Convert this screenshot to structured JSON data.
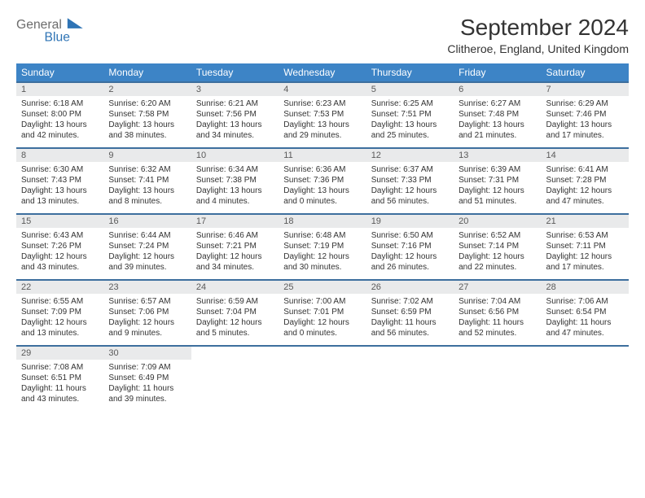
{
  "logo": {
    "text_main": "General",
    "text_sub": "Blue",
    "main_color": "#6c6c6c",
    "sub_color": "#2f74b5",
    "tri_color": "#2f74b5"
  },
  "header": {
    "month_title": "September 2024",
    "location": "Clitheroe, England, United Kingdom"
  },
  "columns": [
    "Sunday",
    "Monday",
    "Tuesday",
    "Wednesday",
    "Thursday",
    "Friday",
    "Saturday"
  ],
  "colors": {
    "header_bg": "#3d84c6",
    "header_text": "#ffffff",
    "row_rule": "#3d6f9e",
    "daynum_bg": "#e9eaeb",
    "daynum_text": "#5a5a5a",
    "body_text": "#333333",
    "page_bg": "#ffffff"
  },
  "fonts": {
    "title_pt": 28,
    "location_pt": 14,
    "colhead_pt": 12,
    "daynum_pt": 11,
    "body_pt": 10
  },
  "weeks": [
    [
      {
        "n": "1",
        "sr": "6:18 AM",
        "ss": "8:00 PM",
        "dl": "13 hours and 42 minutes."
      },
      {
        "n": "2",
        "sr": "6:20 AM",
        "ss": "7:58 PM",
        "dl": "13 hours and 38 minutes."
      },
      {
        "n": "3",
        "sr": "6:21 AM",
        "ss": "7:56 PM",
        "dl": "13 hours and 34 minutes."
      },
      {
        "n": "4",
        "sr": "6:23 AM",
        "ss": "7:53 PM",
        "dl": "13 hours and 29 minutes."
      },
      {
        "n": "5",
        "sr": "6:25 AM",
        "ss": "7:51 PM",
        "dl": "13 hours and 25 minutes."
      },
      {
        "n": "6",
        "sr": "6:27 AM",
        "ss": "7:48 PM",
        "dl": "13 hours and 21 minutes."
      },
      {
        "n": "7",
        "sr": "6:29 AM",
        "ss": "7:46 PM",
        "dl": "13 hours and 17 minutes."
      }
    ],
    [
      {
        "n": "8",
        "sr": "6:30 AM",
        "ss": "7:43 PM",
        "dl": "13 hours and 13 minutes."
      },
      {
        "n": "9",
        "sr": "6:32 AM",
        "ss": "7:41 PM",
        "dl": "13 hours and 8 minutes."
      },
      {
        "n": "10",
        "sr": "6:34 AM",
        "ss": "7:38 PM",
        "dl": "13 hours and 4 minutes."
      },
      {
        "n": "11",
        "sr": "6:36 AM",
        "ss": "7:36 PM",
        "dl": "13 hours and 0 minutes."
      },
      {
        "n": "12",
        "sr": "6:37 AM",
        "ss": "7:33 PM",
        "dl": "12 hours and 56 minutes."
      },
      {
        "n": "13",
        "sr": "6:39 AM",
        "ss": "7:31 PM",
        "dl": "12 hours and 51 minutes."
      },
      {
        "n": "14",
        "sr": "6:41 AM",
        "ss": "7:28 PM",
        "dl": "12 hours and 47 minutes."
      }
    ],
    [
      {
        "n": "15",
        "sr": "6:43 AM",
        "ss": "7:26 PM",
        "dl": "12 hours and 43 minutes."
      },
      {
        "n": "16",
        "sr": "6:44 AM",
        "ss": "7:24 PM",
        "dl": "12 hours and 39 minutes."
      },
      {
        "n": "17",
        "sr": "6:46 AM",
        "ss": "7:21 PM",
        "dl": "12 hours and 34 minutes."
      },
      {
        "n": "18",
        "sr": "6:48 AM",
        "ss": "7:19 PM",
        "dl": "12 hours and 30 minutes."
      },
      {
        "n": "19",
        "sr": "6:50 AM",
        "ss": "7:16 PM",
        "dl": "12 hours and 26 minutes."
      },
      {
        "n": "20",
        "sr": "6:52 AM",
        "ss": "7:14 PM",
        "dl": "12 hours and 22 minutes."
      },
      {
        "n": "21",
        "sr": "6:53 AM",
        "ss": "7:11 PM",
        "dl": "12 hours and 17 minutes."
      }
    ],
    [
      {
        "n": "22",
        "sr": "6:55 AM",
        "ss": "7:09 PM",
        "dl": "12 hours and 13 minutes."
      },
      {
        "n": "23",
        "sr": "6:57 AM",
        "ss": "7:06 PM",
        "dl": "12 hours and 9 minutes."
      },
      {
        "n": "24",
        "sr": "6:59 AM",
        "ss": "7:04 PM",
        "dl": "12 hours and 5 minutes."
      },
      {
        "n": "25",
        "sr": "7:00 AM",
        "ss": "7:01 PM",
        "dl": "12 hours and 0 minutes."
      },
      {
        "n": "26",
        "sr": "7:02 AM",
        "ss": "6:59 PM",
        "dl": "11 hours and 56 minutes."
      },
      {
        "n": "27",
        "sr": "7:04 AM",
        "ss": "6:56 PM",
        "dl": "11 hours and 52 minutes."
      },
      {
        "n": "28",
        "sr": "7:06 AM",
        "ss": "6:54 PM",
        "dl": "11 hours and 47 minutes."
      }
    ],
    [
      {
        "n": "29",
        "sr": "7:08 AM",
        "ss": "6:51 PM",
        "dl": "11 hours and 43 minutes."
      },
      {
        "n": "30",
        "sr": "7:09 AM",
        "ss": "6:49 PM",
        "dl": "11 hours and 39 minutes."
      },
      null,
      null,
      null,
      null,
      null
    ]
  ],
  "labels": {
    "sunrise": "Sunrise:",
    "sunset": "Sunset:",
    "daylight": "Daylight:"
  }
}
